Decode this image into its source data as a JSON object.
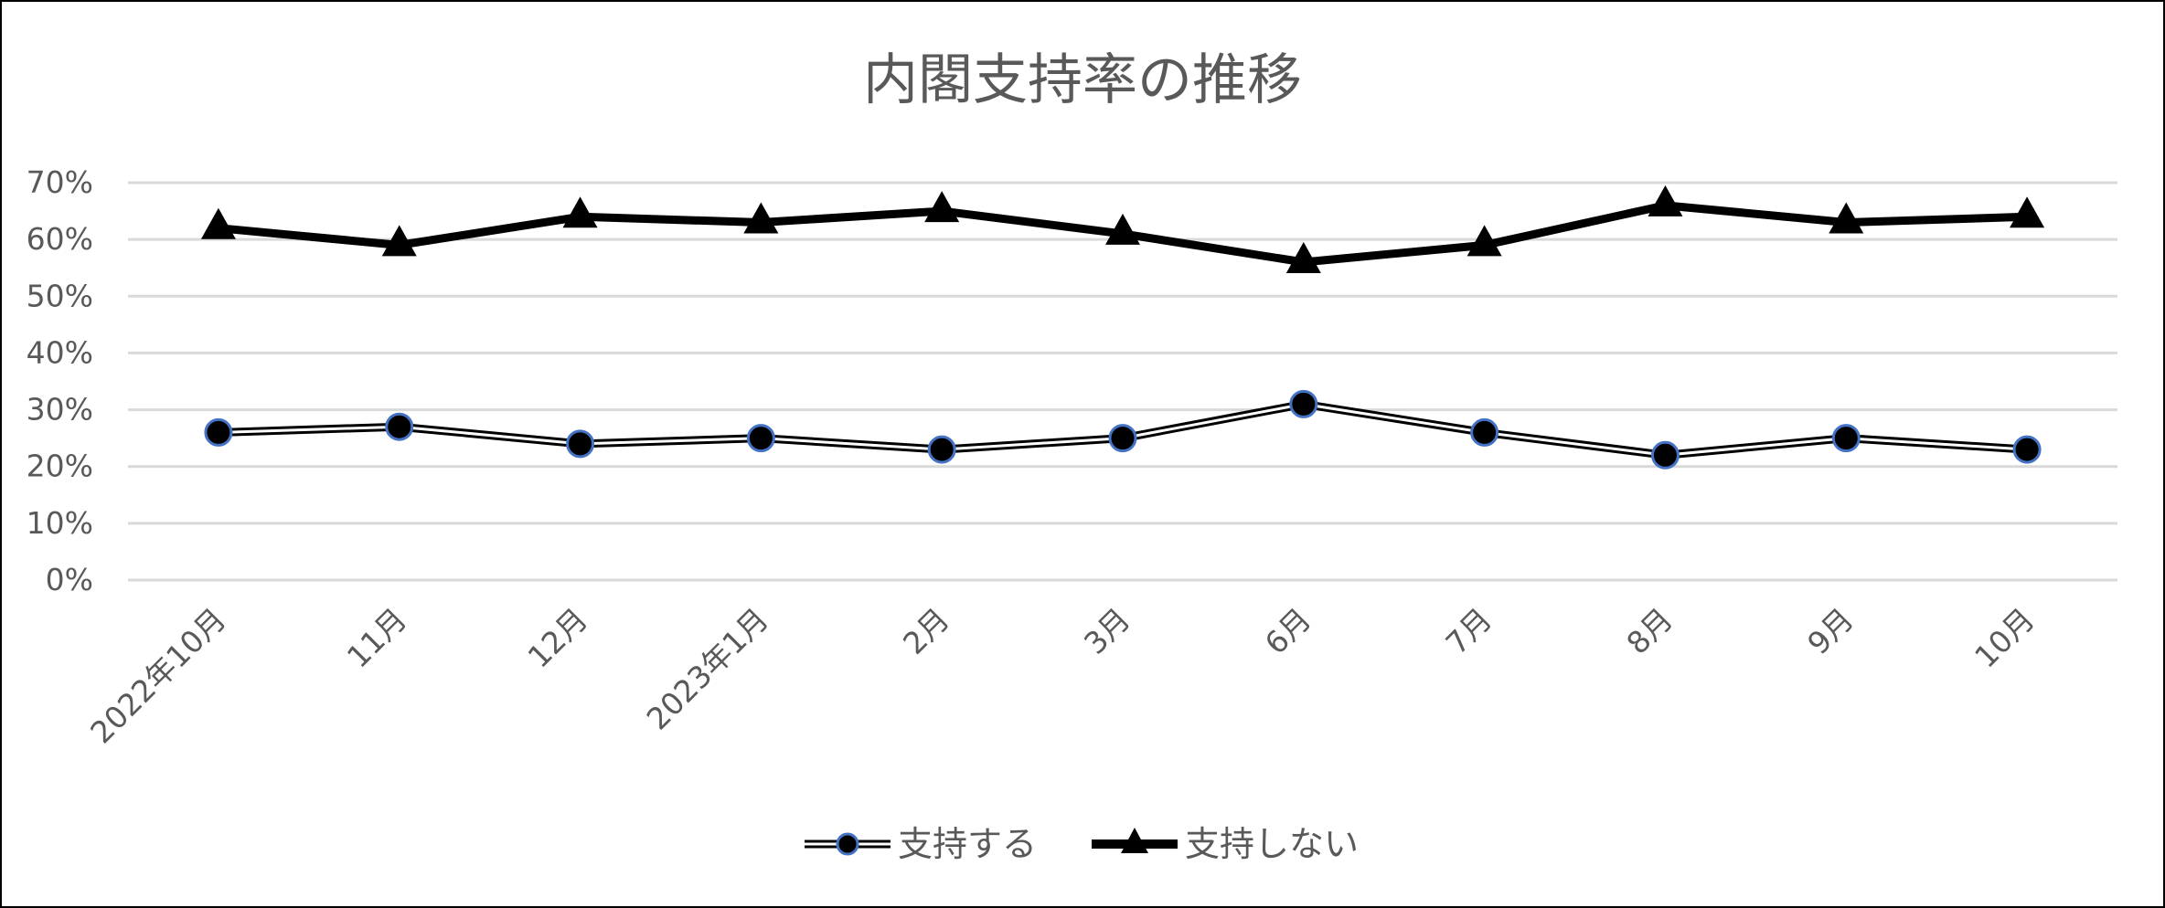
{
  "chart_data": {
    "type": "line",
    "title": "内閣支持率の推移",
    "categories": [
      "2022年10月",
      "11月",
      "12月",
      "2023年1月",
      "2月",
      "3月",
      "6月",
      "7月",
      "8月",
      "9月",
      "10月"
    ],
    "y_ticks": [
      "0%",
      "10%",
      "20%",
      "30%",
      "40%",
      "50%",
      "60%",
      "70%"
    ],
    "ylim": [
      0,
      70
    ],
    "grid": true,
    "legend_position": "bottom",
    "series": [
      {
        "name": "支持する",
        "values": [
          26,
          27,
          24,
          25,
          23,
          25,
          31,
          26,
          22,
          25,
          23
        ],
        "marker": "circle",
        "line_style": "double",
        "color": "#000000",
        "marker_edge_color": "#4472C4"
      },
      {
        "name": "支持しない",
        "values": [
          62,
          59,
          64,
          63,
          65,
          61,
          56,
          59,
          66,
          63,
          64
        ],
        "marker": "triangle",
        "line_style": "solid-thick",
        "color": "#000000"
      }
    ]
  }
}
